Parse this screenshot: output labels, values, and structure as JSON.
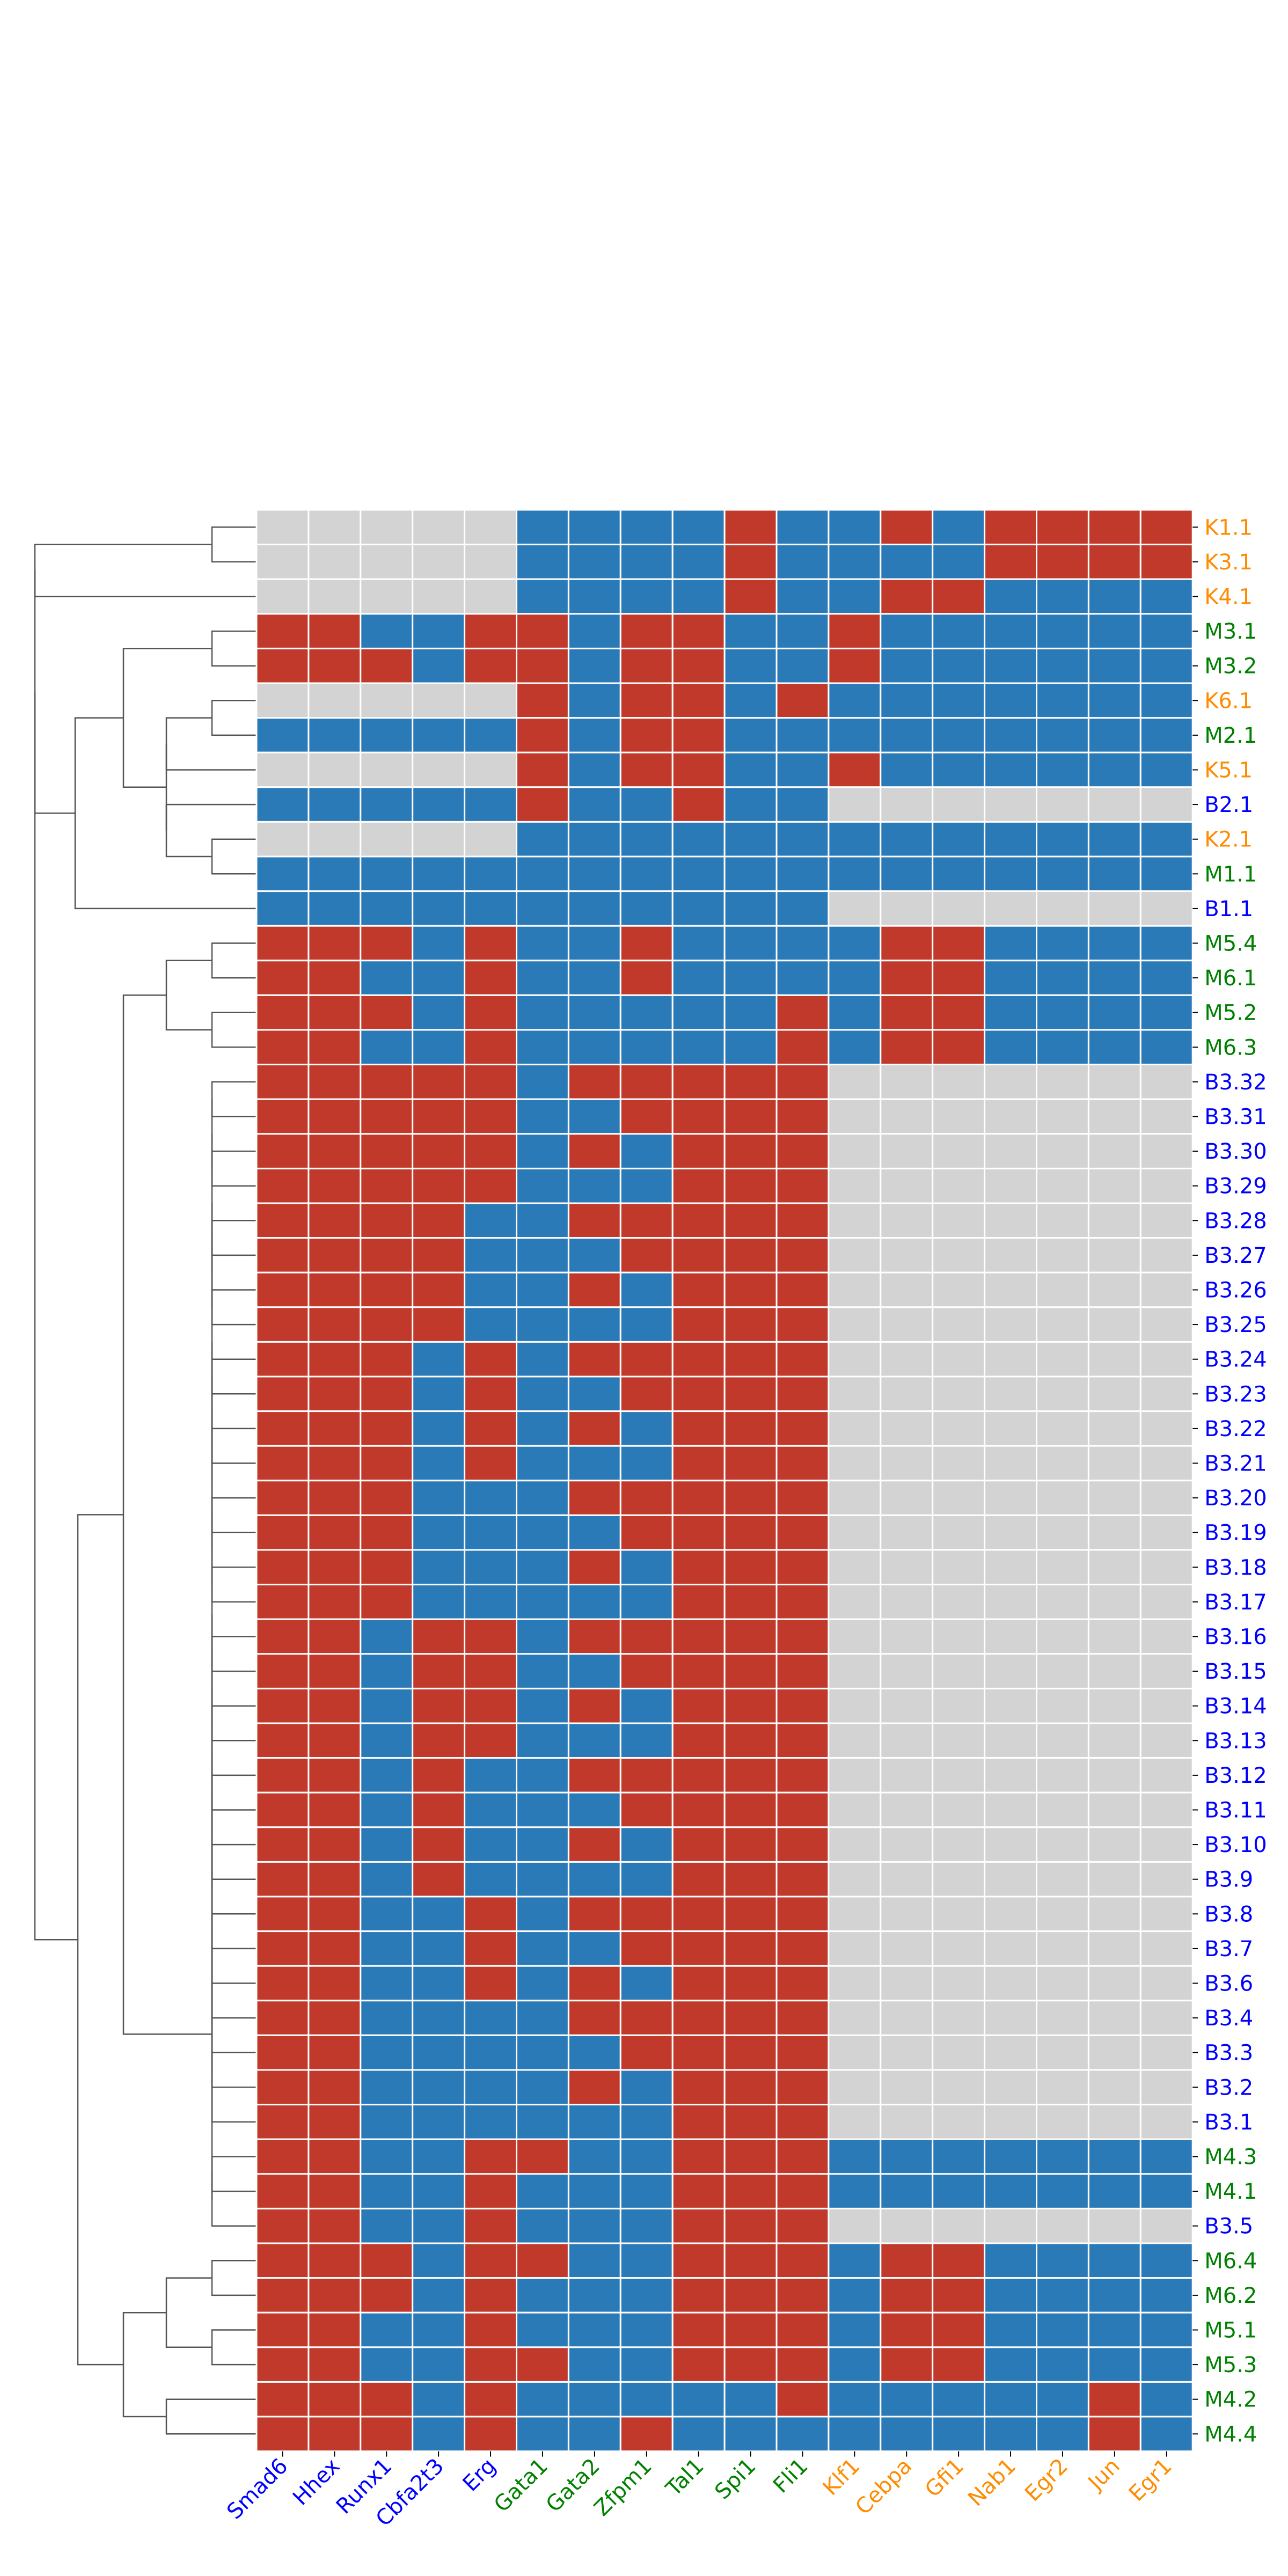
{
  "chart_data": {
    "type": "heatmap",
    "title": "",
    "columns": [
      {
        "name": "Smad6",
        "group": "blue"
      },
      {
        "name": "Hhex",
        "group": "blue"
      },
      {
        "name": "Runx1",
        "group": "blue"
      },
      {
        "name": "Cbfa2t3",
        "group": "blue"
      },
      {
        "name": "Erg",
        "group": "blue"
      },
      {
        "name": "Gata1",
        "group": "green"
      },
      {
        "name": "Gata2",
        "group": "green"
      },
      {
        "name": "Zfpm1",
        "group": "green"
      },
      {
        "name": "Tal1",
        "group": "green"
      },
      {
        "name": "Spi1",
        "group": "green"
      },
      {
        "name": "Fli1",
        "group": "green"
      },
      {
        "name": "Klf1",
        "group": "orange"
      },
      {
        "name": "Cebpa",
        "group": "orange"
      },
      {
        "name": "Gfi1",
        "group": "orange"
      },
      {
        "name": "Nab1",
        "group": "orange"
      },
      {
        "name": "Egr2",
        "group": "orange"
      },
      {
        "name": "Jun",
        "group": "orange"
      },
      {
        "name": "Egr1",
        "group": "orange"
      }
    ],
    "rows": [
      {
        "label": "K1.1",
        "group": "orange",
        "cells": "NNNNNBBBBRBBRBRRRR"
      },
      {
        "label": "K3.1",
        "group": "orange",
        "cells": "NNNNNBBBBRBBBBRRRR"
      },
      {
        "label": "K4.1",
        "group": "orange",
        "cells": "NNNNNBBBBRBBRRBBBB"
      },
      {
        "label": "M3.1",
        "group": "green",
        "cells": "RRBBRRBRRBBRBBBBBB"
      },
      {
        "label": "M3.2",
        "group": "green",
        "cells": "RRRBRRBRRBBRBBBBBB"
      },
      {
        "label": "K6.1",
        "group": "orange",
        "cells": "NNNNNRBRRBRBBBBBBB"
      },
      {
        "label": "M2.1",
        "group": "green",
        "cells": "BBBBBRBRRBBBBBBBBB"
      },
      {
        "label": "K5.1",
        "group": "orange",
        "cells": "NNNNNRBRRBBRBBBBBB"
      },
      {
        "label": "B2.1",
        "group": "blue",
        "cells": "BBBBBRBBRBBNNNNNNN"
      },
      {
        "label": "K2.1",
        "group": "orange",
        "cells": "NNNNNBBBBBBBBBBBBB"
      },
      {
        "label": "M1.1",
        "group": "green",
        "cells": "BBBBBBBBBBBBBBBBBB"
      },
      {
        "label": "B1.1",
        "group": "blue",
        "cells": "BBBBBBBBBBBNNNNNNN"
      },
      {
        "label": "M5.4",
        "group": "green",
        "cells": "RRRBRBBRBBBBRRBBBB"
      },
      {
        "label": "M6.1",
        "group": "green",
        "cells": "RRBBRBBRBBBBRRBBBB"
      },
      {
        "label": "M5.2",
        "group": "green",
        "cells": "RRRBRBBBBBRBRRBBBB"
      },
      {
        "label": "M6.3",
        "group": "green",
        "cells": "RRBBRBBBBBRBRRBBBB"
      },
      {
        "label": "B3.32",
        "group": "blue",
        "cells": "RRRRRBRRRRRNNNNNNN"
      },
      {
        "label": "B3.31",
        "group": "blue",
        "cells": "RRRRRBBRRRRNNNNNNN"
      },
      {
        "label": "B3.30",
        "group": "blue",
        "cells": "RRRRRBRBRRRNNNNNNN"
      },
      {
        "label": "B3.29",
        "group": "blue",
        "cells": "RRRRRBBBRRRNNNNNNN"
      },
      {
        "label": "B3.28",
        "group": "blue",
        "cells": "RRRRBBRRRRRNNNNNNN"
      },
      {
        "label": "B3.27",
        "group": "blue",
        "cells": "RRRRBBBRRRRNNNNNNN"
      },
      {
        "label": "B3.26",
        "group": "blue",
        "cells": "RRRRBBRBRRRNNNNNNN"
      },
      {
        "label": "B3.25",
        "group": "blue",
        "cells": "RRRRBBBBRRRNNNNNNN"
      },
      {
        "label": "B3.24",
        "group": "blue",
        "cells": "RRRBRBRRRRRNNNNNNN"
      },
      {
        "label": "B3.23",
        "group": "blue",
        "cells": "RRRBRBBRRRRNNNNNNN"
      },
      {
        "label": "B3.22",
        "group": "blue",
        "cells": "RRRBRBRBRRRNNNNNNN"
      },
      {
        "label": "B3.21",
        "group": "blue",
        "cells": "RRRBRBBBRRRNNNNNNN"
      },
      {
        "label": "B3.20",
        "group": "blue",
        "cells": "RRRBBBRRRRRNNNNNNN"
      },
      {
        "label": "B3.19",
        "group": "blue",
        "cells": "RRRBBBBRRRRNNNNNNN"
      },
      {
        "label": "B3.18",
        "group": "blue",
        "cells": "RRRBBBRBRRRNNNNNNN"
      },
      {
        "label": "B3.17",
        "group": "blue",
        "cells": "RRRBBBBBRRRNNNNNNN"
      },
      {
        "label": "B3.16",
        "group": "blue",
        "cells": "RRBRRBRRRRRNNNNNNN"
      },
      {
        "label": "B3.15",
        "group": "blue",
        "cells": "RRBRRBBRRRRNNNNNNN"
      },
      {
        "label": "B3.14",
        "group": "blue",
        "cells": "RRBRRBRBRRRNNNNNNN"
      },
      {
        "label": "B3.13",
        "group": "blue",
        "cells": "RRBRRBBBRRRNNNNNNN"
      },
      {
        "label": "B3.12",
        "group": "blue",
        "cells": "RRBRBBRRRRRNNNNNNN"
      },
      {
        "label": "B3.11",
        "group": "blue",
        "cells": "RRBRBBBRRRRNNNNNNN"
      },
      {
        "label": "B3.10",
        "group": "blue",
        "cells": "RRBRBBRBRRRNNNNNNN"
      },
      {
        "label": "B3.9",
        "group": "blue",
        "cells": "RRBRBBBBRRRNNNNNNN"
      },
      {
        "label": "B3.8",
        "group": "blue",
        "cells": "RRBBRBRRRRRNNNNNNN"
      },
      {
        "label": "B3.7",
        "group": "blue",
        "cells": "RRBBRBBRRRRNNNNNNN"
      },
      {
        "label": "B3.6",
        "group": "blue",
        "cells": "RRBBRBRBRRRNNNNNNN"
      },
      {
        "label": "B3.4",
        "group": "blue",
        "cells": "RRBBBBRRRRRNNNNNNN"
      },
      {
        "label": "B3.3",
        "group": "blue",
        "cells": "RRBBBBBRRRRNNNNNNN"
      },
      {
        "label": "B3.2",
        "group": "blue",
        "cells": "RRBBBBRBRRRNNNNNNN"
      },
      {
        "label": "B3.1",
        "group": "blue",
        "cells": "RRBBBBBBRRRNNNNNNN"
      },
      {
        "label": "M4.3",
        "group": "green",
        "cells": "RRBBRRBBRRRBBBBBBB"
      },
      {
        "label": "M4.1",
        "group": "green",
        "cells": "RRBBRBBBRRRBBBBBBB"
      },
      {
        "label": "B3.5",
        "group": "blue",
        "cells": "RRBBRBBBRRRNNNNNNN"
      },
      {
        "label": "M6.4",
        "group": "green",
        "cells": "RRRBRRBBRRRBRRBBBB"
      },
      {
        "label": "M6.2",
        "group": "green",
        "cells": "RRRBRBBBRRRBRRBBBB"
      },
      {
        "label": "M5.1",
        "group": "green",
        "cells": "RRBBRBBBRRRBRRBBBB"
      },
      {
        "label": "M5.3",
        "group": "green",
        "cells": "RRBBRRBBRRRBRRBBBB"
      },
      {
        "label": "M4.2",
        "group": "green",
        "cells": "RRRBRBBBBBRBBBBBRB"
      },
      {
        "label": "M4.4",
        "group": "green",
        "cells": "RRRBRBBRBBBBBBBBRB"
      }
    ],
    "cell_states": {
      "R": "red",
      "B": "blue",
      "N": "grey (no value)"
    },
    "dendrogram": "hierarchical clustering tree on the left, leaves in row order",
    "grid": "white cell borders",
    "legend": "none"
  },
  "colors": {
    "cell_R": "#c0392b",
    "cell_B": "#2a7ab8",
    "cell_N": "#d3d3d3",
    "label_blue": "#0000ff",
    "label_green": "#008000",
    "label_orange": "#ff8c00",
    "tree": "#555555",
    "background": "#ffffff"
  }
}
